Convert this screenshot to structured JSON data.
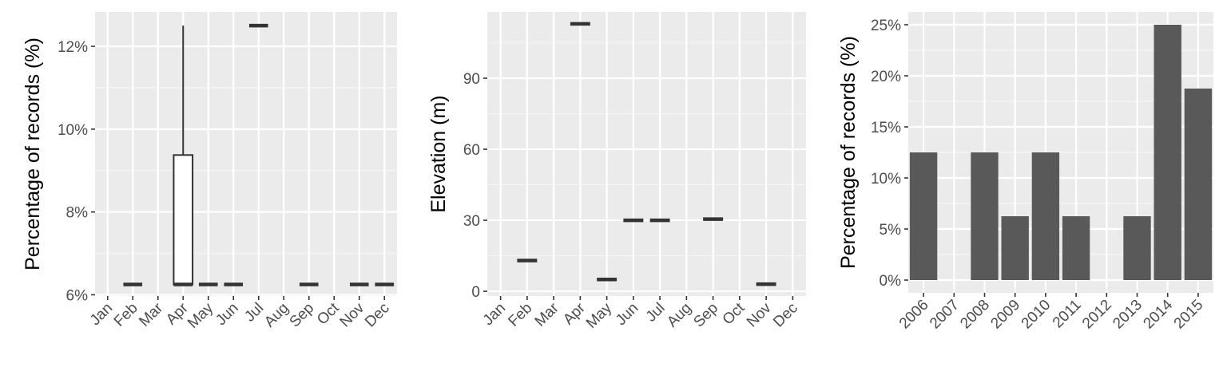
{
  "colors": {
    "panel_background": "#ebebeb",
    "grid_major": "#ffffff",
    "grid_minor": "#f5f5f5",
    "mark": "#333333",
    "bar_fill": "#595959",
    "box_fill": "#ffffff",
    "tick_label": "#4d4d4d"
  },
  "chart_data": [
    {
      "type": "boxplot",
      "title": "",
      "xlabel": "",
      "ylabel": "Percentage of records (%)",
      "categories": [
        "Jan",
        "Feb",
        "Mar",
        "Apr",
        "May",
        "Jun",
        "Jul",
        "Aug",
        "Sep",
        "Oct",
        "Nov",
        "Dec"
      ],
      "yticks": [
        {
          "value": 6,
          "label": "6%"
        },
        {
          "value": 8,
          "label": "8%"
        },
        {
          "value": 10,
          "label": "10%"
        },
        {
          "value": 12,
          "label": "12%"
        }
      ],
      "ylim": [
        5.97,
        12.83
      ],
      "grid": true,
      "boxes": [
        {
          "category": "Feb",
          "min": 6.25,
          "q1": 6.25,
          "median": 6.25,
          "q3": 6.25,
          "max": 6.25
        },
        {
          "category": "Apr",
          "min": 6.25,
          "q1": 6.25,
          "median": 6.25,
          "q3": 9.375,
          "max": 12.5
        },
        {
          "category": "May",
          "min": 6.25,
          "q1": 6.25,
          "median": 6.25,
          "q3": 6.25,
          "max": 6.25
        },
        {
          "category": "Jun",
          "min": 6.25,
          "q1": 6.25,
          "median": 6.25,
          "q3": 6.25,
          "max": 6.25
        },
        {
          "category": "Jul",
          "min": 12.5,
          "q1": 12.5,
          "median": 12.5,
          "q3": 12.5,
          "max": 12.5
        },
        {
          "category": "Sep",
          "min": 6.25,
          "q1": 6.25,
          "median": 6.25,
          "q3": 6.25,
          "max": 6.25
        },
        {
          "category": "Nov",
          "min": 6.25,
          "q1": 6.25,
          "median": 6.25,
          "q3": 6.25,
          "max": 6.25
        },
        {
          "category": "Dec",
          "min": 6.25,
          "q1": 6.25,
          "median": 6.25,
          "q3": 6.25,
          "max": 6.25
        }
      ]
    },
    {
      "type": "boxplot",
      "title": "",
      "xlabel": "",
      "ylabel": "Elevation (m)",
      "categories": [
        "Jan",
        "Feb",
        "Mar",
        "Apr",
        "May",
        "Jun",
        "Jul",
        "Aug",
        "Sep",
        "Oct",
        "Nov",
        "Dec"
      ],
      "yticks": [
        {
          "value": 0,
          "label": "0"
        },
        {
          "value": 30,
          "label": "30"
        },
        {
          "value": 60,
          "label": "60"
        },
        {
          "value": 90,
          "label": "90"
        }
      ],
      "ylim": [
        -2,
        118
      ],
      "grid": true,
      "boxes": [
        {
          "category": "Feb",
          "min": 13,
          "q1": 13,
          "median": 13,
          "q3": 13,
          "max": 13
        },
        {
          "category": "Apr",
          "min": 113,
          "q1": 113,
          "median": 113,
          "q3": 113,
          "max": 113
        },
        {
          "category": "May",
          "min": 5,
          "q1": 5,
          "median": 5,
          "q3": 5,
          "max": 5
        },
        {
          "category": "Jun",
          "min": 30,
          "q1": 30,
          "median": 30,
          "q3": 30,
          "max": 30
        },
        {
          "category": "Jul",
          "min": 30,
          "q1": 30,
          "median": 30,
          "q3": 30,
          "max": 30
        },
        {
          "category": "Sep",
          "min": 30.5,
          "q1": 30.5,
          "median": 30.5,
          "q3": 30.5,
          "max": 30.5
        },
        {
          "category": "Nov",
          "min": 3,
          "q1": 3,
          "median": 3,
          "q3": 3,
          "max": 3
        }
      ]
    },
    {
      "type": "bar",
      "title": "",
      "xlabel": "",
      "ylabel": "Percentage of records (%)",
      "categories": [
        "2006",
        "2007",
        "2008",
        "2009",
        "2010",
        "2011",
        "2012",
        "2013",
        "2014",
        "2015"
      ],
      "values": [
        12.5,
        0,
        12.5,
        6.25,
        12.5,
        6.25,
        0,
        6.25,
        25,
        18.75
      ],
      "yticks": [
        {
          "value": 0,
          "label": "0%"
        },
        {
          "value": 5,
          "label": "5%"
        },
        {
          "value": 10,
          "label": "10%"
        },
        {
          "value": 15,
          "label": "15%"
        },
        {
          "value": 20,
          "label": "20%"
        },
        {
          "value": 25,
          "label": "25%"
        }
      ],
      "ylim": [
        -1.25,
        26.25
      ],
      "grid": true
    }
  ]
}
